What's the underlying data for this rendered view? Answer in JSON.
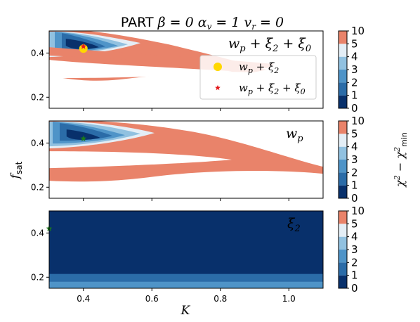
{
  "chart_data": {
    "type": "contour",
    "title": "PART  β = 0  α_v = 1  v_r = 0",
    "title_parts": [
      "PART",
      "β = 0",
      "α",
      "v",
      " = 1",
      "v",
      "r",
      " = 0"
    ],
    "xlabel": "K",
    "ylabel_main": "f",
    "ylabel_sub": "sat",
    "xlim": [
      0.3,
      1.1
    ],
    "ylim": [
      0.15,
      0.5
    ],
    "x_ticks": [
      0.4,
      0.6,
      0.8,
      1.0
    ],
    "x_tick_labels": [
      "0.4",
      "0.6",
      "0.8",
      "1.0"
    ],
    "y_ticks": [
      0.2,
      0.4
    ],
    "y_tick_labels": [
      "0.2",
      "0.4"
    ],
    "colorbar": {
      "label": "χ² − χ²_min",
      "label_main": "χ",
      "label_sup": "2",
      "label_minus": " − χ",
      "label_sub": "min",
      "levels": [
        0,
        1,
        2,
        3,
        4,
        5,
        10
      ],
      "tick_labels": [
        "0",
        "1",
        "2",
        "3",
        "4",
        "5",
        "10"
      ],
      "colors": [
        "#08306b",
        "#2b6ca8",
        "#4f94c8",
        "#91c1e0",
        "#e4eef6",
        "#e9836a"
      ]
    },
    "panels": [
      {
        "panel_label": "w_p + ξ_2  + ξ_0",
        "label_parts": [
          "w",
          "p",
          " + ξ",
          "2",
          "  + ξ",
          "0"
        ],
        "legend": {
          "entries": [
            {
              "label_parts": [
                "w",
                "p",
                " + ξ",
                "2"
              ],
              "marker": "circle",
              "color": "#ffd700"
            },
            {
              "label_parts": [
                "w",
                "p",
                " + ξ",
                "2",
                " + ξ",
                "0"
              ],
              "marker": "star",
              "color": "#e31a1c"
            }
          ]
        },
        "markers": [
          {
            "x": 0.4,
            "y": 0.42,
            "marker": "circle",
            "color": "#ffd700"
          },
          {
            "x": 0.4,
            "y": 0.43,
            "marker": "star",
            "color": "#e31a1c"
          }
        ],
        "best_fit": {
          "x": 0.4,
          "y": 0.42
        },
        "background": "#ffffff"
      },
      {
        "panel_label": "w_p",
        "label_parts": [
          "w",
          "p"
        ],
        "markers": [
          {
            "x": 0.4,
            "y": 0.42,
            "marker": "star",
            "color": "#1a7a1a"
          }
        ],
        "best_fit": {
          "x": 0.4,
          "y": 0.42
        },
        "background": "#ffffff"
      },
      {
        "panel_label": "ξ_2",
        "label_parts": [
          "ξ",
          "2"
        ],
        "markers": [
          {
            "x": 0.3,
            "y": 0.42,
            "marker": "star",
            "color": "#1a7a1a"
          }
        ],
        "background": "#08306b",
        "bands": [
          {
            "y0": 0.15,
            "y1": 0.18,
            "level_index": 2
          },
          {
            "y0": 0.18,
            "y1": 0.215,
            "level_index": 1
          },
          {
            "y0": 0.215,
            "y1": 0.5,
            "level_index": 0
          }
        ]
      }
    ]
  }
}
